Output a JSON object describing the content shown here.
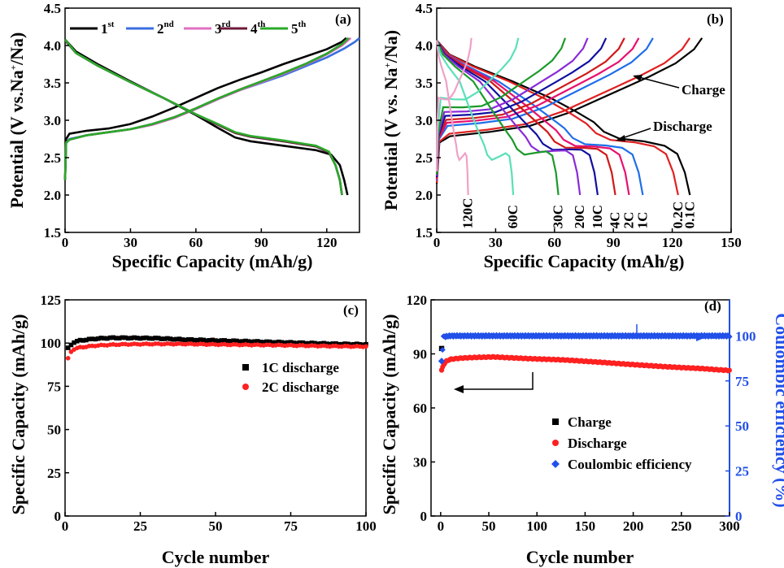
{
  "chart_data": [
    {
      "id": "a",
      "type": "line",
      "panel_label": "(a)",
      "xlabel": "Specific Capacity (mAh/g)",
      "ylabel_main": "Potential (V vs.Na",
      "ylabel_sup": "+",
      "ylabel_tail": "/Na)",
      "xlim": [
        0,
        135
      ],
      "ylim": [
        1.5,
        4.5
      ],
      "xticks": [
        0,
        30,
        60,
        90,
        120
      ],
      "yticks": [
        1.5,
        2.0,
        2.5,
        3.0,
        3.5,
        4.0,
        4.5
      ],
      "series": [
        {
          "name": "1",
          "sup": "st",
          "color": "#000000",
          "charge": [
            [
              0,
              2.2
            ],
            [
              0.5,
              2.75
            ],
            [
              2,
              2.82
            ],
            [
              10,
              2.86
            ],
            [
              20,
              2.89
            ],
            [
              30,
              2.95
            ],
            [
              40,
              3.05
            ],
            [
              50,
              3.17
            ],
            [
              60,
              3.3
            ],
            [
              70,
              3.43
            ],
            [
              80,
              3.54
            ],
            [
              90,
              3.64
            ],
            [
              100,
              3.75
            ],
            [
              110,
              3.85
            ],
            [
              120,
              3.95
            ],
            [
              127,
              4.05
            ],
            [
              129,
              4.1
            ]
          ],
          "discharge": [
            [
              0,
              4.08
            ],
            [
              5,
              3.92
            ],
            [
              15,
              3.75
            ],
            [
              30,
              3.52
            ],
            [
              45,
              3.3
            ],
            [
              60,
              3.07
            ],
            [
              70,
              2.9
            ],
            [
              78,
              2.77
            ],
            [
              85,
              2.72
            ],
            [
              100,
              2.66
            ],
            [
              115,
              2.6
            ],
            [
              122,
              2.54
            ],
            [
              126,
              2.4
            ],
            [
              128,
              2.2
            ],
            [
              129.5,
              2.0
            ]
          ]
        },
        {
          "name": "2",
          "sup": "nd",
          "color": "#3a6fe0",
          "charge": [
            [
              0,
              2.2
            ],
            [
              0.5,
              2.7
            ],
            [
              2,
              2.75
            ],
            [
              10,
              2.8
            ],
            [
              20,
              2.84
            ],
            [
              30,
              2.88
            ],
            [
              40,
              2.94
            ],
            [
              50,
              3.03
            ],
            [
              60,
              3.15
            ],
            [
              70,
              3.28
            ],
            [
              80,
              3.4
            ],
            [
              90,
              3.5
            ],
            [
              100,
              3.6
            ],
            [
              110,
              3.72
            ],
            [
              120,
              3.84
            ],
            [
              128,
              3.96
            ],
            [
              133,
              4.05
            ],
            [
              135,
              4.1
            ]
          ],
          "discharge": [
            [
              0,
              4.07
            ],
            [
              5,
              3.9
            ],
            [
              15,
              3.73
            ],
            [
              30,
              3.51
            ],
            [
              45,
              3.3
            ],
            [
              60,
              3.08
            ],
            [
              70,
              2.94
            ],
            [
              78,
              2.83
            ],
            [
              85,
              2.78
            ],
            [
              100,
              2.72
            ],
            [
              115,
              2.65
            ],
            [
              121,
              2.57
            ],
            [
              124,
              2.4
            ],
            [
              126,
              2.2
            ],
            [
              127,
              2.0
            ]
          ]
        },
        {
          "name": "3",
          "sup": "rd",
          "color": "#e070c0",
          "charge": [
            [
              0,
              2.2
            ],
            [
              0.5,
              2.7
            ],
            [
              2,
              2.74
            ],
            [
              10,
              2.8
            ],
            [
              20,
              2.84
            ],
            [
              30,
              2.88
            ],
            [
              40,
              2.94
            ],
            [
              50,
              3.03
            ],
            [
              60,
              3.15
            ],
            [
              70,
              3.28
            ],
            [
              80,
              3.4
            ],
            [
              90,
              3.51
            ],
            [
              100,
              3.62
            ],
            [
              110,
              3.74
            ],
            [
              120,
              3.88
            ],
            [
              127,
              4.0
            ],
            [
              131,
              4.1
            ]
          ],
          "discharge": [
            [
              0,
              4.07
            ],
            [
              5,
              3.9
            ],
            [
              15,
              3.73
            ],
            [
              30,
              3.51
            ],
            [
              45,
              3.3
            ],
            [
              60,
              3.08
            ],
            [
              70,
              2.94
            ],
            [
              78,
              2.83
            ],
            [
              85,
              2.78
            ],
            [
              100,
              2.72
            ],
            [
              115,
              2.65
            ],
            [
              121,
              2.57
            ],
            [
              124,
              2.4
            ],
            [
              126,
              2.2
            ],
            [
              127,
              2.0
            ]
          ]
        },
        {
          "name": "4",
          "sup": "th",
          "color": "#6e1838",
          "charge": [
            [
              0,
              2.2
            ],
            [
              0.5,
              2.7
            ],
            [
              2,
              2.74
            ],
            [
              10,
              2.8
            ],
            [
              20,
              2.84
            ],
            [
              30,
              2.88
            ],
            [
              40,
              2.95
            ],
            [
              50,
              3.04
            ],
            [
              60,
              3.16
            ],
            [
              70,
              3.29
            ],
            [
              80,
              3.41
            ],
            [
              90,
              3.52
            ],
            [
              100,
              3.63
            ],
            [
              110,
              3.75
            ],
            [
              120,
              3.89
            ],
            [
              127,
              4.02
            ],
            [
              130,
              4.1
            ]
          ],
          "discharge": [
            [
              0,
              4.07
            ],
            [
              5,
              3.9
            ],
            [
              15,
              3.73
            ],
            [
              30,
              3.51
            ],
            [
              45,
              3.3
            ],
            [
              60,
              3.08
            ],
            [
              70,
              2.94
            ],
            [
              78,
              2.83
            ],
            [
              85,
              2.78
            ],
            [
              100,
              2.72
            ],
            [
              115,
              2.65
            ],
            [
              121,
              2.57
            ],
            [
              124,
              2.4
            ],
            [
              126,
              2.2
            ],
            [
              127,
              2.0
            ]
          ]
        },
        {
          "name": "5",
          "sup": "th",
          "color": "#2aaa2a",
          "charge": [
            [
              0,
              2.2
            ],
            [
              0.5,
              2.7
            ],
            [
              2,
              2.74
            ],
            [
              10,
              2.8
            ],
            [
              20,
              2.84
            ],
            [
              30,
              2.88
            ],
            [
              40,
              2.95
            ],
            [
              50,
              3.04
            ],
            [
              60,
              3.16
            ],
            [
              70,
              3.29
            ],
            [
              80,
              3.41
            ],
            [
              90,
              3.52
            ],
            [
              100,
              3.63
            ],
            [
              110,
              3.75
            ],
            [
              120,
              3.89
            ],
            [
              127,
              4.02
            ],
            [
              130,
              4.1
            ]
          ],
          "discharge": [
            [
              0,
              4.08
            ],
            [
              5,
              3.9
            ],
            [
              15,
              3.73
            ],
            [
              30,
              3.51
            ],
            [
              45,
              3.3
            ],
            [
              60,
              3.08
            ],
            [
              70,
              2.95
            ],
            [
              78,
              2.84
            ],
            [
              85,
              2.79
            ],
            [
              100,
              2.73
            ],
            [
              115,
              2.66
            ],
            [
              121,
              2.58
            ],
            [
              124,
              2.4
            ],
            [
              126,
              2.2
            ],
            [
              127,
              2.0
            ]
          ]
        }
      ]
    },
    {
      "id": "b",
      "type": "line",
      "panel_label": "(b)",
      "xlabel": "Specific Capacity (mAh/g)",
      "ylabel_main": "Potential (V vs. Na",
      "ylabel_sup": "+",
      "ylabel_tail": "/Na)",
      "xlim": [
        0,
        150
      ],
      "ylim": [
        1.5,
        4.5
      ],
      "xticks": [
        0,
        30,
        60,
        90,
        120,
        150
      ],
      "yticks": [
        1.5,
        2.0,
        2.5,
        3.0,
        3.5,
        4.0,
        4.5
      ],
      "annotations": [
        "Charge",
        "Discharge"
      ],
      "rates": [
        {
          "label": "0.1C",
          "cap": 129,
          "color": "#000000"
        },
        {
          "label": "0.2C",
          "cap": 123,
          "color": "#e02020"
        },
        {
          "label": "1C",
          "cap": 105,
          "color": "#1e6ee8"
        },
        {
          "label": "2C",
          "cap": 98,
          "color": "#e8106e"
        },
        {
          "label": "4C",
          "cap": 91,
          "color": "#d01818"
        },
        {
          "label": "10C",
          "cap": 82,
          "color": "#1010a0"
        },
        {
          "label": "20C",
          "cap": 73,
          "color": "#8a2ad8"
        },
        {
          "label": "30C",
          "cap": 62,
          "color": "#1a9a2a"
        },
        {
          "label": "60C",
          "cap": 39,
          "color": "#5ae0b8"
        },
        {
          "label": "120C",
          "cap": 16,
          "color": "#f0a0c8"
        }
      ]
    },
    {
      "id": "c",
      "type": "scatter",
      "panel_label": "(c)",
      "xlabel": "Cycle number",
      "ylabel": "Specific Capacity (mAh/g)",
      "xlim": [
        0,
        100
      ],
      "ylim": [
        0,
        125
      ],
      "xticks": [
        0,
        25,
        50,
        75,
        100
      ],
      "yticks": [
        0,
        25,
        50,
        75,
        100,
        125
      ],
      "legend": "center-right",
      "series": [
        {
          "name": "1C discharge",
          "color": "#000000",
          "marker": "square",
          "points": [
            [
              1,
              97
            ],
            [
              2,
              99
            ],
            [
              3,
              100.5
            ],
            [
              5,
              101.5
            ],
            [
              10,
              102.5
            ],
            [
              15,
              103
            ],
            [
              20,
              103
            ],
            [
              30,
              102.8
            ],
            [
              40,
              102
            ],
            [
              50,
              101.5
            ],
            [
              60,
              101
            ],
            [
              70,
              100.5
            ],
            [
              80,
              100
            ],
            [
              90,
              99.5
            ],
            [
              100,
              99.2
            ]
          ]
        },
        {
          "name": "2C discharge",
          "color": "#ff2020",
          "marker": "circle",
          "points": [
            [
              1,
              91
            ],
            [
              2,
              95
            ],
            [
              3,
              96.5
            ],
            [
              5,
              97.5
            ],
            [
              10,
              98.5
            ],
            [
              15,
              99
            ],
            [
              20,
              99.3
            ],
            [
              30,
              99.5
            ],
            [
              40,
              99.5
            ],
            [
              50,
              99.2
            ],
            [
              60,
              99
            ],
            [
              70,
              98.8
            ],
            [
              80,
              98.5
            ],
            [
              90,
              98.2
            ],
            [
              100,
              98
            ]
          ]
        }
      ]
    },
    {
      "id": "d",
      "type": "scatter",
      "panel_label": "(d)",
      "xlabel": "Cycle number",
      "ylabel": "Specific Capacity (mAh/g)",
      "ylabel_right": "Coulombic efficiency (%)",
      "xlim": [
        -10,
        300
      ],
      "ylim": [
        0,
        120
      ],
      "ylim_right": [
        0,
        120
      ],
      "xticks": [
        0,
        50,
        100,
        150,
        200,
        250,
        300
      ],
      "yticks": [
        0,
        30,
        60,
        90,
        120
      ],
      "yticks_right": [
        0,
        25,
        50,
        75,
        100
      ],
      "legend": "bottom-right",
      "series": [
        {
          "name": "Charge",
          "color": "#000000",
          "marker": "square",
          "points": [
            [
              1,
              93
            ]
          ]
        },
        {
          "name": "Discharge",
          "color": "#ff2020",
          "marker": "circle",
          "points": [
            [
              1,
              81
            ],
            [
              3,
              84
            ],
            [
              6,
              86
            ],
            [
              10,
              87
            ],
            [
              20,
              87.6
            ],
            [
              30,
              87.9
            ],
            [
              40,
              88.1
            ],
            [
              55,
              88.3
            ],
            [
              70,
              87.9
            ],
            [
              90,
              87.4
            ],
            [
              110,
              87
            ],
            [
              130,
              86.6
            ],
            [
              150,
              85.9
            ],
            [
              170,
              85.2
            ],
            [
              190,
              84.4
            ],
            [
              210,
              83.7
            ],
            [
              230,
              83
            ],
            [
              250,
              82.4
            ],
            [
              270,
              81.9
            ],
            [
              290,
              81.1
            ],
            [
              300,
              80.8
            ]
          ]
        },
        {
          "name": "Coulombic efficiency",
          "color": "#2250e8",
          "marker": "diamond",
          "axis": "right",
          "points": [
            [
              1,
              86
            ],
            [
              3,
              99.5
            ],
            [
              10,
              100
            ],
            [
              50,
              100
            ],
            [
              100,
              100
            ],
            [
              150,
              100
            ],
            [
              200,
              100
            ],
            [
              250,
              100
            ],
            [
              300,
              100
            ]
          ]
        }
      ]
    }
  ]
}
